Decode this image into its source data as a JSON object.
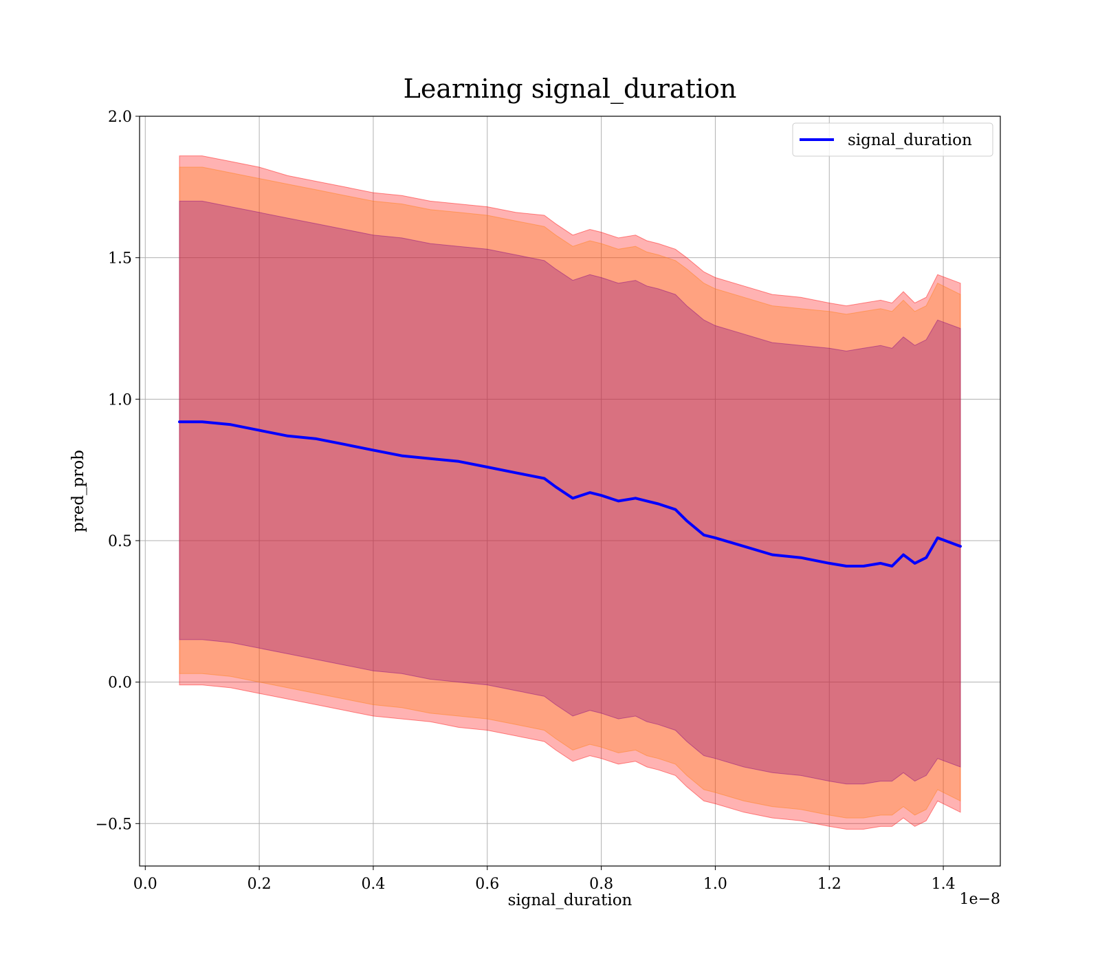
{
  "chart_data": {
    "type": "line",
    "title": "Learning signal_duration",
    "xlabel": "signal_duration",
    "ylabel": "pred_prob",
    "x_scale_label": "1e−8",
    "xlim": [
      -0.01,
      1.5
    ],
    "ylim": [
      -0.65,
      2.0
    ],
    "xticks": [
      0.0,
      0.2,
      0.4,
      0.6,
      0.8,
      1.0,
      1.2,
      1.4
    ],
    "xtick_labels": [
      "0.0",
      "0.2",
      "0.4",
      "0.6",
      "0.8",
      "1.0",
      "1.2",
      "1.4"
    ],
    "yticks": [
      -0.5,
      0.0,
      0.5,
      1.0,
      1.5,
      2.0
    ],
    "ytick_labels": [
      "−0.5",
      "0.0",
      "0.5",
      "1.0",
      "1.5",
      "2.0"
    ],
    "grid": true,
    "legend_position": "top-right",
    "series": [
      {
        "name": "signal_duration",
        "color": "#0000ff",
        "x": [
          0.06,
          0.1,
          0.15,
          0.2,
          0.25,
          0.3,
          0.35,
          0.4,
          0.45,
          0.5,
          0.55,
          0.6,
          0.65,
          0.7,
          0.72,
          0.75,
          0.78,
          0.8,
          0.83,
          0.86,
          0.88,
          0.9,
          0.93,
          0.95,
          0.98,
          1.0,
          1.05,
          1.1,
          1.15,
          1.2,
          1.23,
          1.26,
          1.29,
          1.31,
          1.33,
          1.35,
          1.37,
          1.39,
          1.43
        ],
        "y": [
          0.92,
          0.92,
          0.91,
          0.89,
          0.87,
          0.86,
          0.84,
          0.82,
          0.8,
          0.79,
          0.78,
          0.76,
          0.74,
          0.72,
          0.69,
          0.65,
          0.67,
          0.66,
          0.64,
          0.65,
          0.64,
          0.63,
          0.61,
          0.57,
          0.52,
          0.51,
          0.48,
          0.45,
          0.44,
          0.42,
          0.41,
          0.41,
          0.42,
          0.41,
          0.45,
          0.42,
          0.44,
          0.51,
          0.48
        ]
      }
    ],
    "bands": [
      {
        "color": "#ff0000",
        "opacity": 0.3,
        "x": [
          0.06,
          0.1,
          0.15,
          0.2,
          0.25,
          0.3,
          0.35,
          0.4,
          0.45,
          0.5,
          0.55,
          0.6,
          0.65,
          0.7,
          0.72,
          0.75,
          0.78,
          0.8,
          0.83,
          0.86,
          0.88,
          0.9,
          0.93,
          0.95,
          0.98,
          1.0,
          1.05,
          1.1,
          1.15,
          1.2,
          1.23,
          1.26,
          1.29,
          1.31,
          1.33,
          1.35,
          1.37,
          1.39,
          1.43
        ],
        "upper": [
          1.86,
          1.86,
          1.84,
          1.82,
          1.79,
          1.77,
          1.75,
          1.73,
          1.72,
          1.7,
          1.69,
          1.68,
          1.66,
          1.65,
          1.62,
          1.58,
          1.6,
          1.59,
          1.57,
          1.58,
          1.56,
          1.55,
          1.53,
          1.5,
          1.45,
          1.43,
          1.4,
          1.37,
          1.36,
          1.34,
          1.33,
          1.34,
          1.35,
          1.34,
          1.38,
          1.34,
          1.36,
          1.44,
          1.41
        ],
        "lower": [
          -0.01,
          -0.01,
          -0.02,
          -0.04,
          -0.06,
          -0.08,
          -0.1,
          -0.12,
          -0.13,
          -0.14,
          -0.16,
          -0.17,
          -0.19,
          -0.21,
          -0.24,
          -0.28,
          -0.26,
          -0.27,
          -0.29,
          -0.28,
          -0.3,
          -0.31,
          -0.33,
          -0.37,
          -0.42,
          -0.43,
          -0.46,
          -0.48,
          -0.49,
          -0.51,
          -0.52,
          -0.52,
          -0.51,
          -0.51,
          -0.48,
          -0.51,
          -0.49,
          -0.42,
          -0.46
        ]
      },
      {
        "color": "#ff7f0e",
        "opacity": 0.3,
        "x": [
          0.06,
          0.1,
          0.15,
          0.2,
          0.25,
          0.3,
          0.35,
          0.4,
          0.45,
          0.5,
          0.55,
          0.6,
          0.65,
          0.7,
          0.72,
          0.75,
          0.78,
          0.8,
          0.83,
          0.86,
          0.88,
          0.9,
          0.93,
          0.95,
          0.98,
          1.0,
          1.05,
          1.1,
          1.15,
          1.2,
          1.23,
          1.26,
          1.29,
          1.31,
          1.33,
          1.35,
          1.37,
          1.39,
          1.43
        ],
        "upper": [
          1.82,
          1.82,
          1.8,
          1.78,
          1.76,
          1.74,
          1.72,
          1.7,
          1.69,
          1.67,
          1.66,
          1.65,
          1.63,
          1.61,
          1.58,
          1.54,
          1.56,
          1.55,
          1.53,
          1.54,
          1.52,
          1.51,
          1.49,
          1.46,
          1.41,
          1.39,
          1.36,
          1.33,
          1.32,
          1.31,
          1.3,
          1.31,
          1.32,
          1.31,
          1.35,
          1.31,
          1.33,
          1.41,
          1.37
        ],
        "lower": [
          0.03,
          0.03,
          0.02,
          0.0,
          -0.02,
          -0.04,
          -0.06,
          -0.08,
          -0.09,
          -0.11,
          -0.12,
          -0.13,
          -0.15,
          -0.17,
          -0.2,
          -0.24,
          -0.22,
          -0.23,
          -0.25,
          -0.24,
          -0.26,
          -0.27,
          -0.29,
          -0.33,
          -0.38,
          -0.39,
          -0.42,
          -0.44,
          -0.45,
          -0.47,
          -0.48,
          -0.48,
          -0.47,
          -0.47,
          -0.44,
          -0.47,
          -0.45,
          -0.38,
          -0.42
        ]
      },
      {
        "color": "#800080",
        "opacity": 0.3,
        "x": [
          0.06,
          0.1,
          0.15,
          0.2,
          0.25,
          0.3,
          0.35,
          0.4,
          0.45,
          0.5,
          0.55,
          0.6,
          0.65,
          0.7,
          0.72,
          0.75,
          0.78,
          0.8,
          0.83,
          0.86,
          0.88,
          0.9,
          0.93,
          0.95,
          0.98,
          1.0,
          1.05,
          1.1,
          1.15,
          1.2,
          1.23,
          1.26,
          1.29,
          1.31,
          1.33,
          1.35,
          1.37,
          1.39,
          1.43
        ],
        "upper": [
          1.7,
          1.7,
          1.68,
          1.66,
          1.64,
          1.62,
          1.6,
          1.58,
          1.57,
          1.55,
          1.54,
          1.53,
          1.51,
          1.49,
          1.46,
          1.42,
          1.44,
          1.43,
          1.41,
          1.42,
          1.4,
          1.39,
          1.37,
          1.33,
          1.28,
          1.26,
          1.23,
          1.2,
          1.19,
          1.18,
          1.17,
          1.18,
          1.19,
          1.18,
          1.22,
          1.19,
          1.21,
          1.28,
          1.25
        ],
        "lower": [
          0.15,
          0.15,
          0.14,
          0.12,
          0.1,
          0.08,
          0.06,
          0.04,
          0.03,
          0.01,
          0.0,
          -0.01,
          -0.03,
          -0.05,
          -0.08,
          -0.12,
          -0.1,
          -0.11,
          -0.13,
          -0.12,
          -0.14,
          -0.15,
          -0.17,
          -0.21,
          -0.26,
          -0.27,
          -0.3,
          -0.32,
          -0.33,
          -0.35,
          -0.36,
          -0.36,
          -0.35,
          -0.35,
          -0.32,
          -0.35,
          -0.33,
          -0.27,
          -0.3
        ]
      }
    ]
  }
}
